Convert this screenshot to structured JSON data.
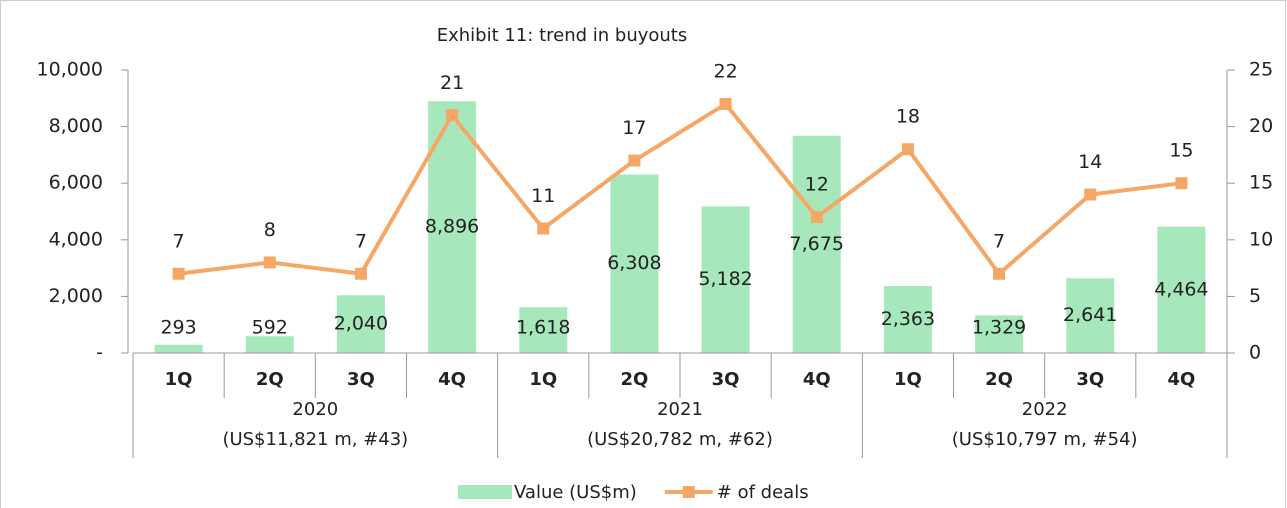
{
  "chart_data": {
    "type": "bar_line",
    "title": "Exhibit 11: trend in buyouts",
    "categories": [
      "1Q",
      "2Q",
      "3Q",
      "4Q",
      "1Q",
      "2Q",
      "3Q",
      "4Q",
      "1Q",
      "2Q",
      "3Q",
      "4Q"
    ],
    "groups": [
      {
        "name": "2020",
        "note": "(US$11,821 m, #43)"
      },
      {
        "name": "2021",
        "note": "(US$20,782 m, #62)"
      },
      {
        "name": "2022",
        "note": "(US$10,797 m, #54)"
      }
    ],
    "series": [
      {
        "name": "Value (US$m)",
        "type": "bar",
        "color": "#a6e8bb",
        "values": [
          293,
          592,
          2040,
          8896,
          1618,
          6308,
          5182,
          7675,
          2363,
          1329,
          2641,
          4464
        ],
        "value_labels": [
          "293",
          "592",
          "2,040",
          "8,896",
          "1,618",
          "6,308",
          "5,182",
          "7,675",
          "2,363",
          "1,329",
          "2,641",
          "4,464"
        ]
      },
      {
        "name": "# of deals",
        "type": "line",
        "axis": "y2",
        "color": "#f7a765",
        "values": [
          7,
          8,
          7,
          21,
          11,
          17,
          22,
          12,
          18,
          7,
          14,
          15
        ]
      }
    ],
    "ylim": [
      0,
      10000
    ],
    "yticks": [
      {
        "value": 0,
        "label": "-"
      },
      {
        "value": 2000,
        "label": "2,000"
      },
      {
        "value": 4000,
        "label": "4,000"
      },
      {
        "value": 6000,
        "label": "6,000"
      },
      {
        "value": 8000,
        "label": "8,000"
      },
      {
        "value": 10000,
        "label": "10,000"
      }
    ],
    "y2lim": [
      0,
      25
    ],
    "y2ticks": [
      0,
      5,
      10,
      15,
      20,
      25
    ],
    "legend": "bottom"
  }
}
